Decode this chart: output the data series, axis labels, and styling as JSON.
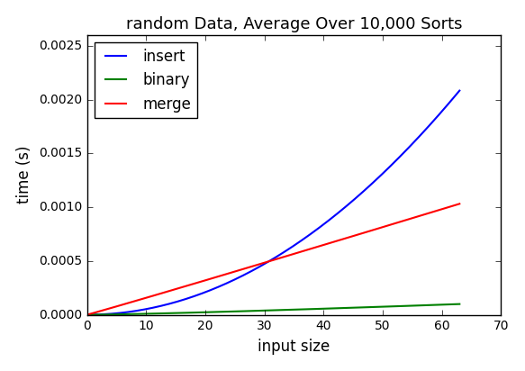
{
  "title": "random Data, Average Over 10,000 Sorts",
  "xlabel": "input size",
  "ylabel": "time (s)",
  "xlim": [
    0,
    67
  ],
  "ylim": [
    0,
    0.0026
  ],
  "xticks": [
    0,
    10,
    20,
    30,
    40,
    50,
    60,
    70
  ],
  "yticks": [
    0.0,
    0.0005,
    0.001,
    0.0015,
    0.002,
    0.0025
  ],
  "lines": [
    {
      "label": "insert",
      "color": "blue",
      "kind": "insert"
    },
    {
      "label": "binary",
      "color": "green",
      "kind": "binary"
    },
    {
      "label": "merge",
      "color": "red",
      "kind": "merge"
    }
  ],
  "insert_coeff": 5.25e-07,
  "binary_coeff": 3.8e-07,
  "merge_coeff_nlogn": 3.3e-07,
  "merge_coeff_n": 1.5e-05,
  "n_max": 63,
  "background_color": "#ffffff",
  "legend_loc": "upper left",
  "title_fontsize": 13,
  "label_fontsize": 12,
  "tick_fontsize": 10,
  "legend_fontsize": 12,
  "linewidth": 1.5,
  "style": "classic"
}
